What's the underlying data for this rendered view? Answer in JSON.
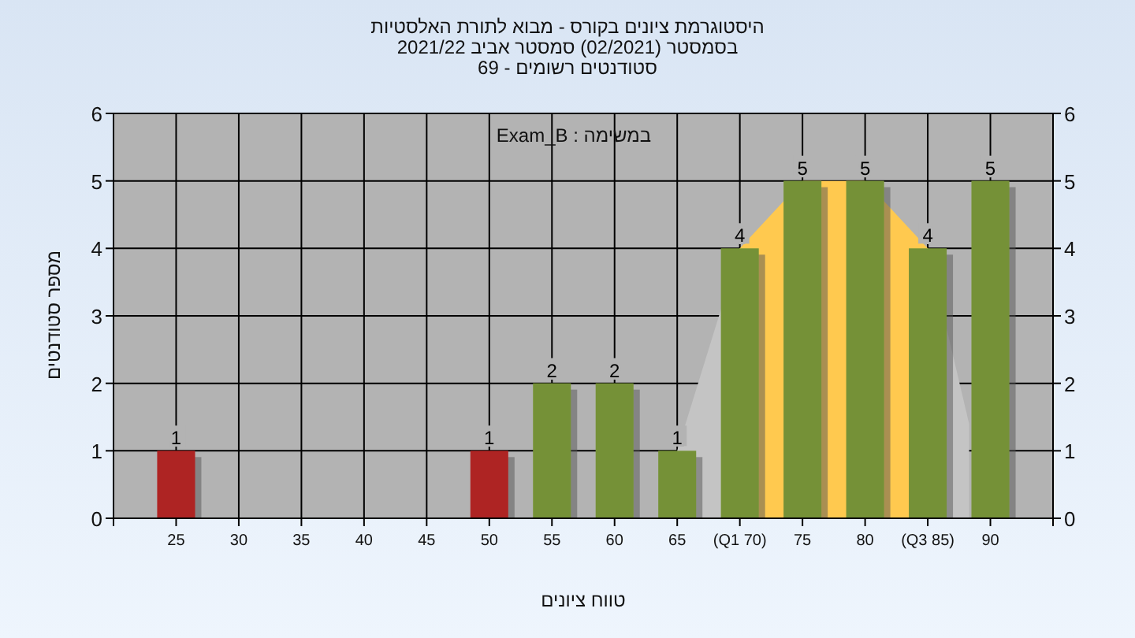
{
  "chart_data": {
    "type": "bar",
    "title": "היסטוגרמת ציונים בקורס - מבוא לתורת האלסטיות\nבסמסטר  (02/2021)  סמסטר אביב 2021/22\nסטודנטים רשומים - 69",
    "xlabel": "טווח ציונים",
    "ylabel": "מספר סטודנטים",
    "annotations": [
      "במשימה : Exam_B"
    ],
    "series": [
      {
        "type": "area",
        "color": "#c4c4c4",
        "x": [
          65,
          70,
          85,
          88.3
        ],
        "values": [
          1,
          4,
          4,
          1.4
        ]
      },
      {
        "type": "area",
        "color": "#ffc94f",
        "x": [
          70,
          75,
          80,
          85
        ],
        "values": [
          4,
          5,
          5,
          4
        ]
      },
      {
        "x": [
          25,
          50,
          55,
          60,
          65,
          70,
          75,
          80,
          85,
          90
        ],
        "values": [
          1,
          1,
          2,
          2,
          1,
          4,
          5,
          5,
          4,
          5
        ],
        "value_labels": [
          "1",
          "1",
          "2",
          "2",
          "1",
          "4",
          "5",
          "5",
          "4",
          "5"
        ],
        "colors": [
          "#e8302f",
          "#e8302f",
          "#9cc24a",
          "#9cc24a",
          "#9cc24a",
          "#9cc24a",
          "#9cc24a",
          "#9cc24a",
          "#9cc24a",
          "#9cc24a"
        ]
      }
    ],
    "xlim": [
      20,
      95
    ],
    "xticks": [
      {
        "value": 20,
        "label": null
      },
      25,
      30,
      35,
      40,
      45,
      50,
      55,
      60,
      65,
      {
        "value": 70,
        "label": "(Q1 70)"
      },
      75,
      80,
      {
        "value": 85,
        "label": "(Q3 85)"
      },
      90,
      {
        "value": 95,
        "label": null
      }
    ],
    "ylim": [
      0,
      6
    ],
    "yticks": [
      0,
      1,
      2,
      3,
      4,
      5,
      6
    ],
    "y2lim": [
      0,
      6
    ],
    "y2ticks": [
      0,
      1,
      2,
      3,
      4,
      5,
      6
    ],
    "grid": true
  }
}
